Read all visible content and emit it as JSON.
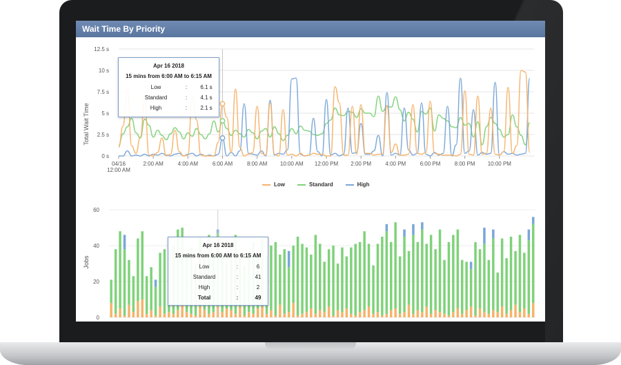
{
  "panel": {
    "title": "Wait Time By Priority"
  },
  "colors": {
    "low": "#f5b36b",
    "standard": "#7fd27a",
    "high": "#7aa6d8",
    "header": "#6a86ad",
    "tooltip_border": "#7fa0c9"
  },
  "legend": [
    {
      "label": "Low",
      "color": "#f5b36b"
    },
    {
      "label": "Standard",
      "color": "#7fd27a"
    },
    {
      "label": "High",
      "color": "#7aa6d8"
    }
  ],
  "tooltip_wait": {
    "date": "Apr 16 2018",
    "range": "15 mins from 6:00 AM to 6:15 AM",
    "rows": [
      {
        "label": "Low",
        "sep": ":",
        "value": "6.1 s"
      },
      {
        "label": "Standard",
        "sep": ":",
        "value": "4.1 s"
      },
      {
        "label": "High",
        "sep": ":",
        "value": "2.1 s"
      }
    ]
  },
  "tooltip_jobs": {
    "date": "Apr 16 2018",
    "range": "15 mins from 6:00 AM to 6:15 AM",
    "rows": [
      {
        "label": "Low",
        "sep": ":",
        "value": "6"
      },
      {
        "label": "Standard",
        "sep": ":",
        "value": "41"
      },
      {
        "label": "High",
        "sep": ":",
        "value": "2"
      }
    ],
    "total": {
      "label": "Total",
      "sep": ":",
      "value": "49"
    }
  },
  "chart_data": [
    {
      "type": "line",
      "ylabel": "Total Wait Time",
      "ylim": [
        0,
        12.5
      ],
      "yticks": [
        "0 s",
        "2.5 s",
        "5 s",
        "7.5 s",
        "10 s",
        "12.5 s"
      ],
      "ytick_values": [
        0,
        2.5,
        5,
        7.5,
        10,
        12.5
      ],
      "xticks": [
        {
          "t": 0,
          "label": "04/16",
          "label2": "12:00 AM"
        },
        {
          "t": 2,
          "label": "2:00 AM"
        },
        {
          "t": 4,
          "label": "4:00 AM"
        },
        {
          "t": 6,
          "label": "6:00 AM"
        },
        {
          "t": 8,
          "label": "8:00 AM"
        },
        {
          "t": 10,
          "label": "10:00 AM"
        },
        {
          "t": 12,
          "label": "12:00 PM"
        },
        {
          "t": 14,
          "label": "2:00 PM"
        },
        {
          "t": 16,
          "label": "4:00 PM"
        },
        {
          "t": 18,
          "label": "6:00 PM"
        },
        {
          "t": 20,
          "label": "8:00 PM"
        },
        {
          "t": 22,
          "label": "10:00 PM"
        }
      ],
      "xlim": [
        0,
        24
      ],
      "grid": true,
      "legend_position": "bottom",
      "series": [
        {
          "name": "Low",
          "color": "#f5b36b",
          "x_hours_step": 0.25,
          "values": [
            1.0,
            3.5,
            7.8,
            1.2,
            0.3,
            2.2,
            6.5,
            0.1,
            0.0,
            0.4,
            2.1,
            0.0,
            0.2,
            3.0,
            0.5,
            0.0,
            0.1,
            7.0,
            4.2,
            0.1,
            0.0,
            0.0,
            0.0,
            1.6,
            6.1,
            4.5,
            0.4,
            7.8,
            1.0,
            0.0,
            0.2,
            0.4,
            5.8,
            0.3,
            0.1,
            6.2,
            0.2,
            0.0,
            5.4,
            0.1,
            0.2,
            0.0,
            0.3,
            0.0,
            0.1,
            0.3,
            0.2,
            0.2,
            0.0,
            0.0,
            8.1,
            6.2,
            0.1,
            0.1,
            5.8,
            0.2,
            6.0,
            0.3,
            0.3,
            0.1,
            0.2,
            0.2,
            5.9,
            0.4,
            1.4,
            0.1,
            0.1,
            0.2,
            6.0,
            0.3,
            0.2,
            0.4,
            6.4,
            0.3,
            0.2,
            0.1,
            0.1,
            0.1,
            0.0,
            0.2,
            7.6,
            0.2,
            0.1,
            7.0,
            0.2,
            0.3,
            5.6,
            0.2,
            0.1,
            0.5,
            8.0,
            0.3,
            1.2,
            10.0,
            9.8,
            0.4
          ]
        },
        {
          "name": "Standard",
          "color": "#7fd27a",
          "x_hours_step": 0.25,
          "values": [
            1.2,
            2.6,
            3.4,
            4.4,
            2.7,
            2.1,
            4.3,
            3.6,
            2.2,
            3.0,
            2.4,
            1.9,
            2.6,
            3.3,
            2.8,
            2.0,
            2.7,
            2.3,
            3.2,
            2.5,
            2.0,
            2.6,
            4.1,
            2.8,
            4.1,
            3.2,
            2.4,
            3.0,
            2.6,
            2.2,
            3.1,
            2.7,
            2.0,
            2.9,
            3.2,
            2.2,
            3.4,
            2.6,
            1.8,
            2.4,
            3.2,
            2.6,
            3.5,
            3.0,
            2.9,
            2.5,
            2.4,
            2.6,
            3.8,
            4.2,
            5.6,
            4.8,
            4.7,
            5.2,
            5.1,
            4.5,
            5.5,
            5.0,
            5.0,
            4.6,
            7.0,
            5.2,
            5.8,
            5.7,
            6.9,
            5.4,
            4.1,
            5.1,
            4.3,
            2.8,
            5.2,
            4.9,
            5.6,
            2.9,
            4.8,
            4.4,
            4.1,
            3.4,
            3.3,
            4.5,
            3.6,
            3.8,
            2.2,
            4.0,
            1.3,
            3.4,
            4.5,
            3.8,
            3.1,
            2.2,
            2.5,
            4.8,
            3.4,
            2.4,
            1.3,
            3.9
          ]
        },
        {
          "name": "High",
          "color": "#7aa6d8",
          "x_hours_step": 0.25,
          "values": [
            0.0,
            0.0,
            0.6,
            0.0,
            0.1,
            0.0,
            0.2,
            0.0,
            0.2,
            0.1,
            0.3,
            0.1,
            0.0,
            0.2,
            0.3,
            0.0,
            0.2,
            0.3,
            0.0,
            0.2,
            0.0,
            0.1,
            0.0,
            0.2,
            2.1,
            0.0,
            0.4,
            0.0,
            0.6,
            6.1,
            0.3,
            0.2,
            0.1,
            0.6,
            0.0,
            6.5,
            0.1,
            0.3,
            0.2,
            0.7,
            9.0,
            9.1,
            0.2,
            0.0,
            0.1,
            4.4,
            0.5,
            0.0,
            6.6,
            0.1,
            0.3,
            0.0,
            0.2,
            5.6,
            0.3,
            0.4,
            3.8,
            0.2,
            0.2,
            0.6,
            2.4,
            0.0,
            7.4,
            0.1,
            0.3,
            0.1,
            5.6,
            0.7,
            0.1,
            0.3,
            6.2,
            0.2,
            0.0,
            0.4,
            0.1,
            0.3,
            5.8,
            0.0,
            1.3,
            9.1,
            0.3,
            0.6,
            5.4,
            0.1,
            0.4,
            0.2,
            0.3,
            8.6,
            0.1,
            0.5,
            0.2,
            0.3,
            0.1,
            0.2,
            0.3,
            9.1
          ]
        }
      ],
      "hover": {
        "t": 6.0,
        "values": {
          "Low": 6.1,
          "Standard": 4.1,
          "High": 2.1
        }
      }
    },
    {
      "type": "bar",
      "stacked": true,
      "ylabel": "Jobs",
      "ylim": [
        0,
        60
      ],
      "yticks": [
        "0",
        "20",
        "40",
        "60"
      ],
      "ytick_values": [
        0,
        20,
        40,
        60
      ],
      "x_hours_step": 0.25,
      "grid": true,
      "series": [
        {
          "name": "Low",
          "color": "#f5b36b",
          "values": [
            8,
            2,
            5,
            1,
            7,
            3,
            9,
            10,
            2,
            4,
            1,
            6,
            2,
            3,
            2,
            4,
            7,
            3,
            2,
            1,
            6,
            4,
            2,
            3,
            6,
            3,
            5,
            4,
            2,
            6,
            1,
            3,
            2,
            5,
            6,
            2,
            4,
            1,
            7,
            2,
            3,
            8,
            1,
            2,
            3,
            5,
            2,
            4,
            3,
            6,
            1,
            4,
            3,
            5,
            2,
            1,
            3,
            4,
            6,
            2,
            3,
            1,
            2,
            4,
            5,
            2,
            3,
            7,
            2,
            4,
            3,
            6,
            2,
            4,
            3,
            2,
            1,
            3,
            5,
            2,
            4,
            6,
            1,
            5,
            3,
            2,
            4,
            3,
            6,
            2,
            4,
            7,
            3,
            5,
            2,
            8
          ]
        },
        {
          "name": "Standard",
          "color": "#7fd27a",
          "values": [
            13,
            36,
            43,
            37,
            25,
            20,
            35,
            38,
            21,
            24,
            16,
            30,
            36,
            29,
            38,
            45,
            43,
            32,
            37,
            29,
            39,
            30,
            44,
            32,
            41,
            33,
            26,
            37,
            44,
            30,
            28,
            34,
            40,
            30,
            38,
            32,
            36,
            41,
            28,
            36,
            25,
            32,
            44,
            39,
            36,
            30,
            44,
            37,
            28,
            32,
            39,
            26,
            36,
            29,
            37,
            40,
            39,
            44,
            35,
            27,
            38,
            44,
            46,
            38,
            48,
            32,
            42,
            30,
            44,
            38,
            46,
            35,
            44,
            34,
            46,
            30,
            41,
            43,
            44,
            30,
            27,
            21,
            41,
            33,
            38,
            30,
            40,
            22,
            38,
            31,
            41,
            30,
            43,
            31,
            41,
            44
          ]
        },
        {
          "name": "High",
          "color": "#7aa6d8",
          "values": [
            0,
            0,
            0,
            8,
            0,
            0,
            0,
            0,
            0,
            0,
            4,
            0,
            0,
            6,
            0,
            0,
            0,
            0,
            0,
            0,
            0,
            0,
            0,
            0,
            2,
            0,
            0,
            0,
            0,
            0,
            0,
            0,
            0,
            0,
            0,
            0,
            0,
            0,
            0,
            0,
            9,
            0,
            0,
            0,
            0,
            0,
            0,
            0,
            0,
            0,
            0,
            0,
            0,
            0,
            0,
            0,
            0,
            0,
            0,
            0,
            0,
            0,
            4,
            0,
            0,
            0,
            4,
            0,
            6,
            0,
            4,
            0,
            0,
            0,
            0,
            0,
            0,
            0,
            0,
            0,
            0,
            4,
            0,
            0,
            9,
            0,
            5,
            0,
            0,
            0,
            0,
            0,
            0,
            0,
            6,
            4
          ]
        }
      ],
      "hover": {
        "t": 6.0,
        "values": {
          "Low": 6,
          "Standard": 41,
          "High": 2,
          "Total": 49
        }
      }
    }
  ]
}
